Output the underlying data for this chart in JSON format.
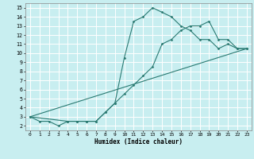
{
  "xlabel": "Humidex (Indice chaleur)",
  "bg_color": "#c8eef0",
  "grid_color": "#ffffff",
  "line_color": "#2a7a72",
  "xlim": [
    -0.5,
    23.5
  ],
  "ylim": [
    1.5,
    15.5
  ],
  "xticks": [
    0,
    1,
    2,
    3,
    4,
    5,
    6,
    7,
    8,
    9,
    10,
    11,
    12,
    13,
    14,
    15,
    16,
    17,
    18,
    19,
    20,
    21,
    22,
    23
  ],
  "yticks": [
    2,
    3,
    4,
    5,
    6,
    7,
    8,
    9,
    10,
    11,
    12,
    13,
    14,
    15
  ],
  "line1_x": [
    0,
    1,
    2,
    3,
    4,
    5,
    6,
    7,
    8,
    9,
    10,
    11,
    12,
    13,
    14,
    15,
    16,
    17,
    18,
    19,
    20,
    21,
    22,
    23
  ],
  "line1_y": [
    3.0,
    2.5,
    2.5,
    2.0,
    2.5,
    2.5,
    2.5,
    2.5,
    3.5,
    4.5,
    9.5,
    13.5,
    14.0,
    15.0,
    14.5,
    14.0,
    13.0,
    12.5,
    11.5,
    11.5,
    10.5,
    11.0,
    10.5,
    10.5
  ],
  "line2_x": [
    0,
    4,
    5,
    6,
    7,
    8,
    9,
    10,
    11,
    12,
    13,
    14,
    15,
    16,
    17,
    18,
    19,
    20,
    21,
    22,
    23
  ],
  "line2_y": [
    3.0,
    2.5,
    2.5,
    2.5,
    2.5,
    3.5,
    4.5,
    5.5,
    6.5,
    7.5,
    8.5,
    11.0,
    11.5,
    12.5,
    13.0,
    13.0,
    13.5,
    11.5,
    11.5,
    10.5,
    10.5
  ],
  "line3_x": [
    0,
    23
  ],
  "line3_y": [
    3.0,
    10.5
  ]
}
